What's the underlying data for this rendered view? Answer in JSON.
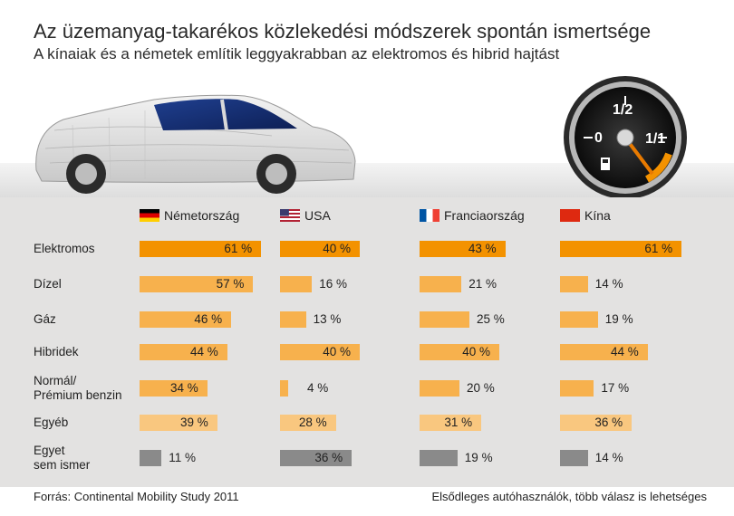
{
  "title": "Az üzemanyag-takarékos közlekedési módszerek spontán ismertsége",
  "subtitle": "A kínaiak és a németek említik leggyakrabban az elektromos és hibrid hajtást",
  "gauge": {
    "label_empty": "0",
    "label_half": "1/2",
    "label_full": "1/1"
  },
  "footer": {
    "source": "Forrás: Continental Mobility Study 2011",
    "note": "Elsődleges autóhasználók, több válasz is lehetséges"
  },
  "colors": {
    "bar_dark": "#f39200",
    "bar_mid": "#f7b14d",
    "bar_light": "#f9c77f",
    "bar_gray": "#8a8a8a",
    "panel": "#e3e2e1"
  },
  "chart_data": {
    "type": "bar",
    "orientation": "horizontal",
    "categories": [
      "Elektromos",
      "Dízel",
      "Gáz",
      "Hibridek",
      "Normál/\nPrémium benzin",
      "Egyéb",
      "Egyet\nsem ismer"
    ],
    "unit": "%",
    "series": [
      {
        "name": "Németország",
        "flag": "de",
        "values": [
          61,
          57,
          46,
          44,
          34,
          39,
          11
        ]
      },
      {
        "name": "USA",
        "flag": "us",
        "values": [
          40,
          16,
          13,
          40,
          4,
          28,
          36
        ]
      },
      {
        "name": "Franciaország",
        "flag": "fr",
        "values": [
          43,
          21,
          25,
          40,
          20,
          31,
          19
        ]
      },
      {
        "name": "Kína",
        "flag": "cn",
        "values": [
          61,
          14,
          19,
          44,
          17,
          36,
          14
        ]
      }
    ]
  }
}
